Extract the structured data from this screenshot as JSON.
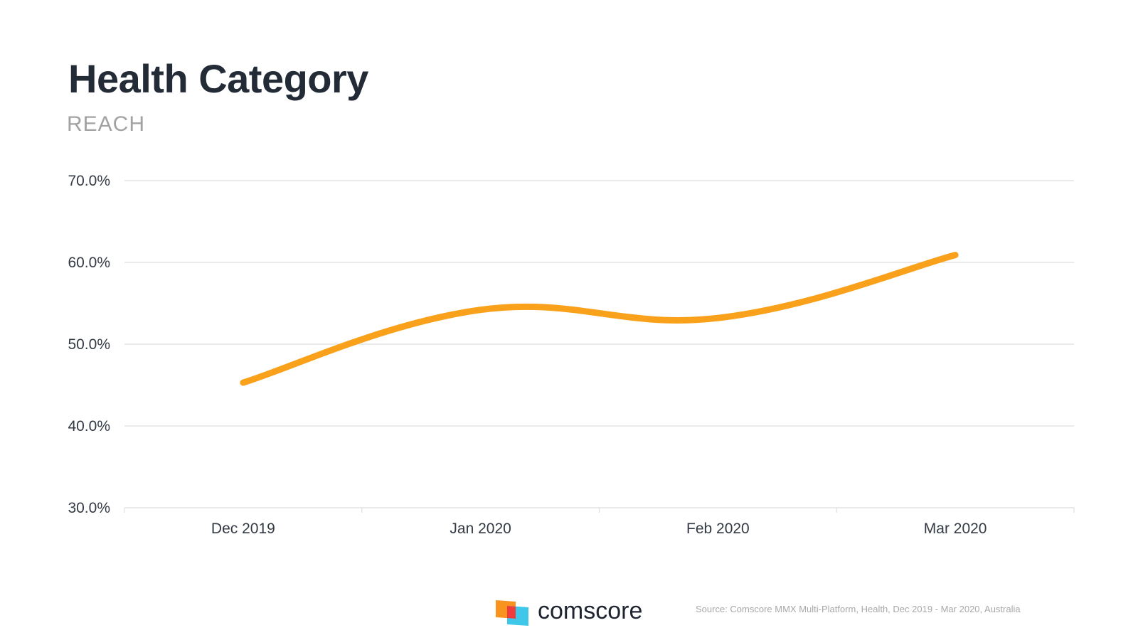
{
  "header": {
    "title": "Health Category",
    "subtitle": "REACH"
  },
  "chart_data": {
    "type": "line",
    "title": "Health Category",
    "subtitle": "REACH",
    "categories": [
      "Dec 2019",
      "Jan 2020",
      "Feb 2020",
      "Mar 2020"
    ],
    "series": [
      {
        "name": "Reach",
        "values": [
          45.3,
          54.2,
          53.2,
          60.9
        ],
        "color": "#f9a11b"
      }
    ],
    "y_ticks": [
      "70.0%",
      "60.0%",
      "50.0%",
      "40.0%",
      "30.0%"
    ],
    "ylim": [
      30,
      70
    ],
    "grid": true,
    "smooth": true,
    "xlabel": "",
    "ylabel": ""
  },
  "footer": {
    "brand": "comscore",
    "source": "Source: Comscore MMX Multi-Platform, Health, Dec 2019 - Mar 2020, Australia"
  },
  "colors": {
    "line": "#f9a11b",
    "grid": "#dedede",
    "title": "#232b36",
    "subtitle": "#a2a2a2",
    "logo_orange": "#f7931e",
    "logo_red": "#ef3b3b",
    "logo_blue": "#3ec7e8"
  }
}
